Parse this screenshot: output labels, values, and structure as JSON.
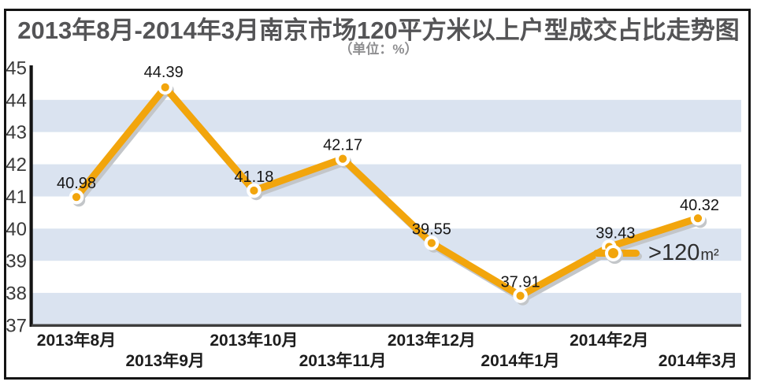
{
  "chart_data": {
    "type": "line",
    "title": "2013年8月-2014年3月南京市场120平方米以上户型成交占比走势图",
    "unit_label": "（单位：%）",
    "categories": [
      "2013年8月",
      "2013年9月",
      "2013年10月",
      "2013年11月",
      "2013年12月",
      "2014年1月",
      "2014年2月",
      "2014年3月"
    ],
    "series": [
      {
        "name": ">120m²",
        "values": [
          40.98,
          44.39,
          41.18,
          42.17,
          39.55,
          37.91,
          39.43,
          40.32
        ]
      }
    ],
    "value_labels": [
      "40.98",
      "44.39",
      "41.18",
      "42.17",
      "39.55",
      "37.91",
      "39.43",
      "40.32"
    ],
    "ylim": [
      37,
      45
    ],
    "yticks": [
      45,
      44,
      43,
      42,
      41,
      40,
      39,
      38,
      37
    ],
    "shaded_band_tops": [
      44,
      42,
      40,
      38
    ],
    "grid": "alternating horizontal bands, no vertical gridlines",
    "legend_position": "inside plot, right of 2014年2月 point",
    "colors": {
      "line": "#F2A50C",
      "marker_ring": "#ffffff",
      "shadow": "#c3c6c9",
      "band": "#dae3f0",
      "axis": "#141414",
      "baseline": "#3d3d3d"
    }
  },
  "legend": {
    "gt": ">",
    "value": "120",
    "unit": "m²"
  }
}
